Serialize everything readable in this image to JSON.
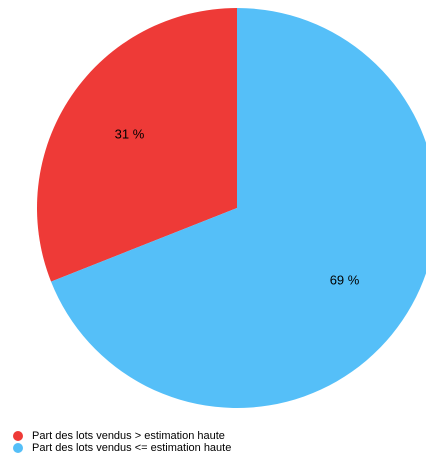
{
  "chart_data": {
    "type": "pie",
    "categories": [
      "Part des lots vendus > estimation haute",
      "Part des lots vendus <= estimation haute"
    ],
    "values": [
      31,
      69
    ],
    "value_labels": [
      "31 %",
      "69 %"
    ],
    "colors": [
      "#ee3a37",
      "#55bff8"
    ]
  }
}
